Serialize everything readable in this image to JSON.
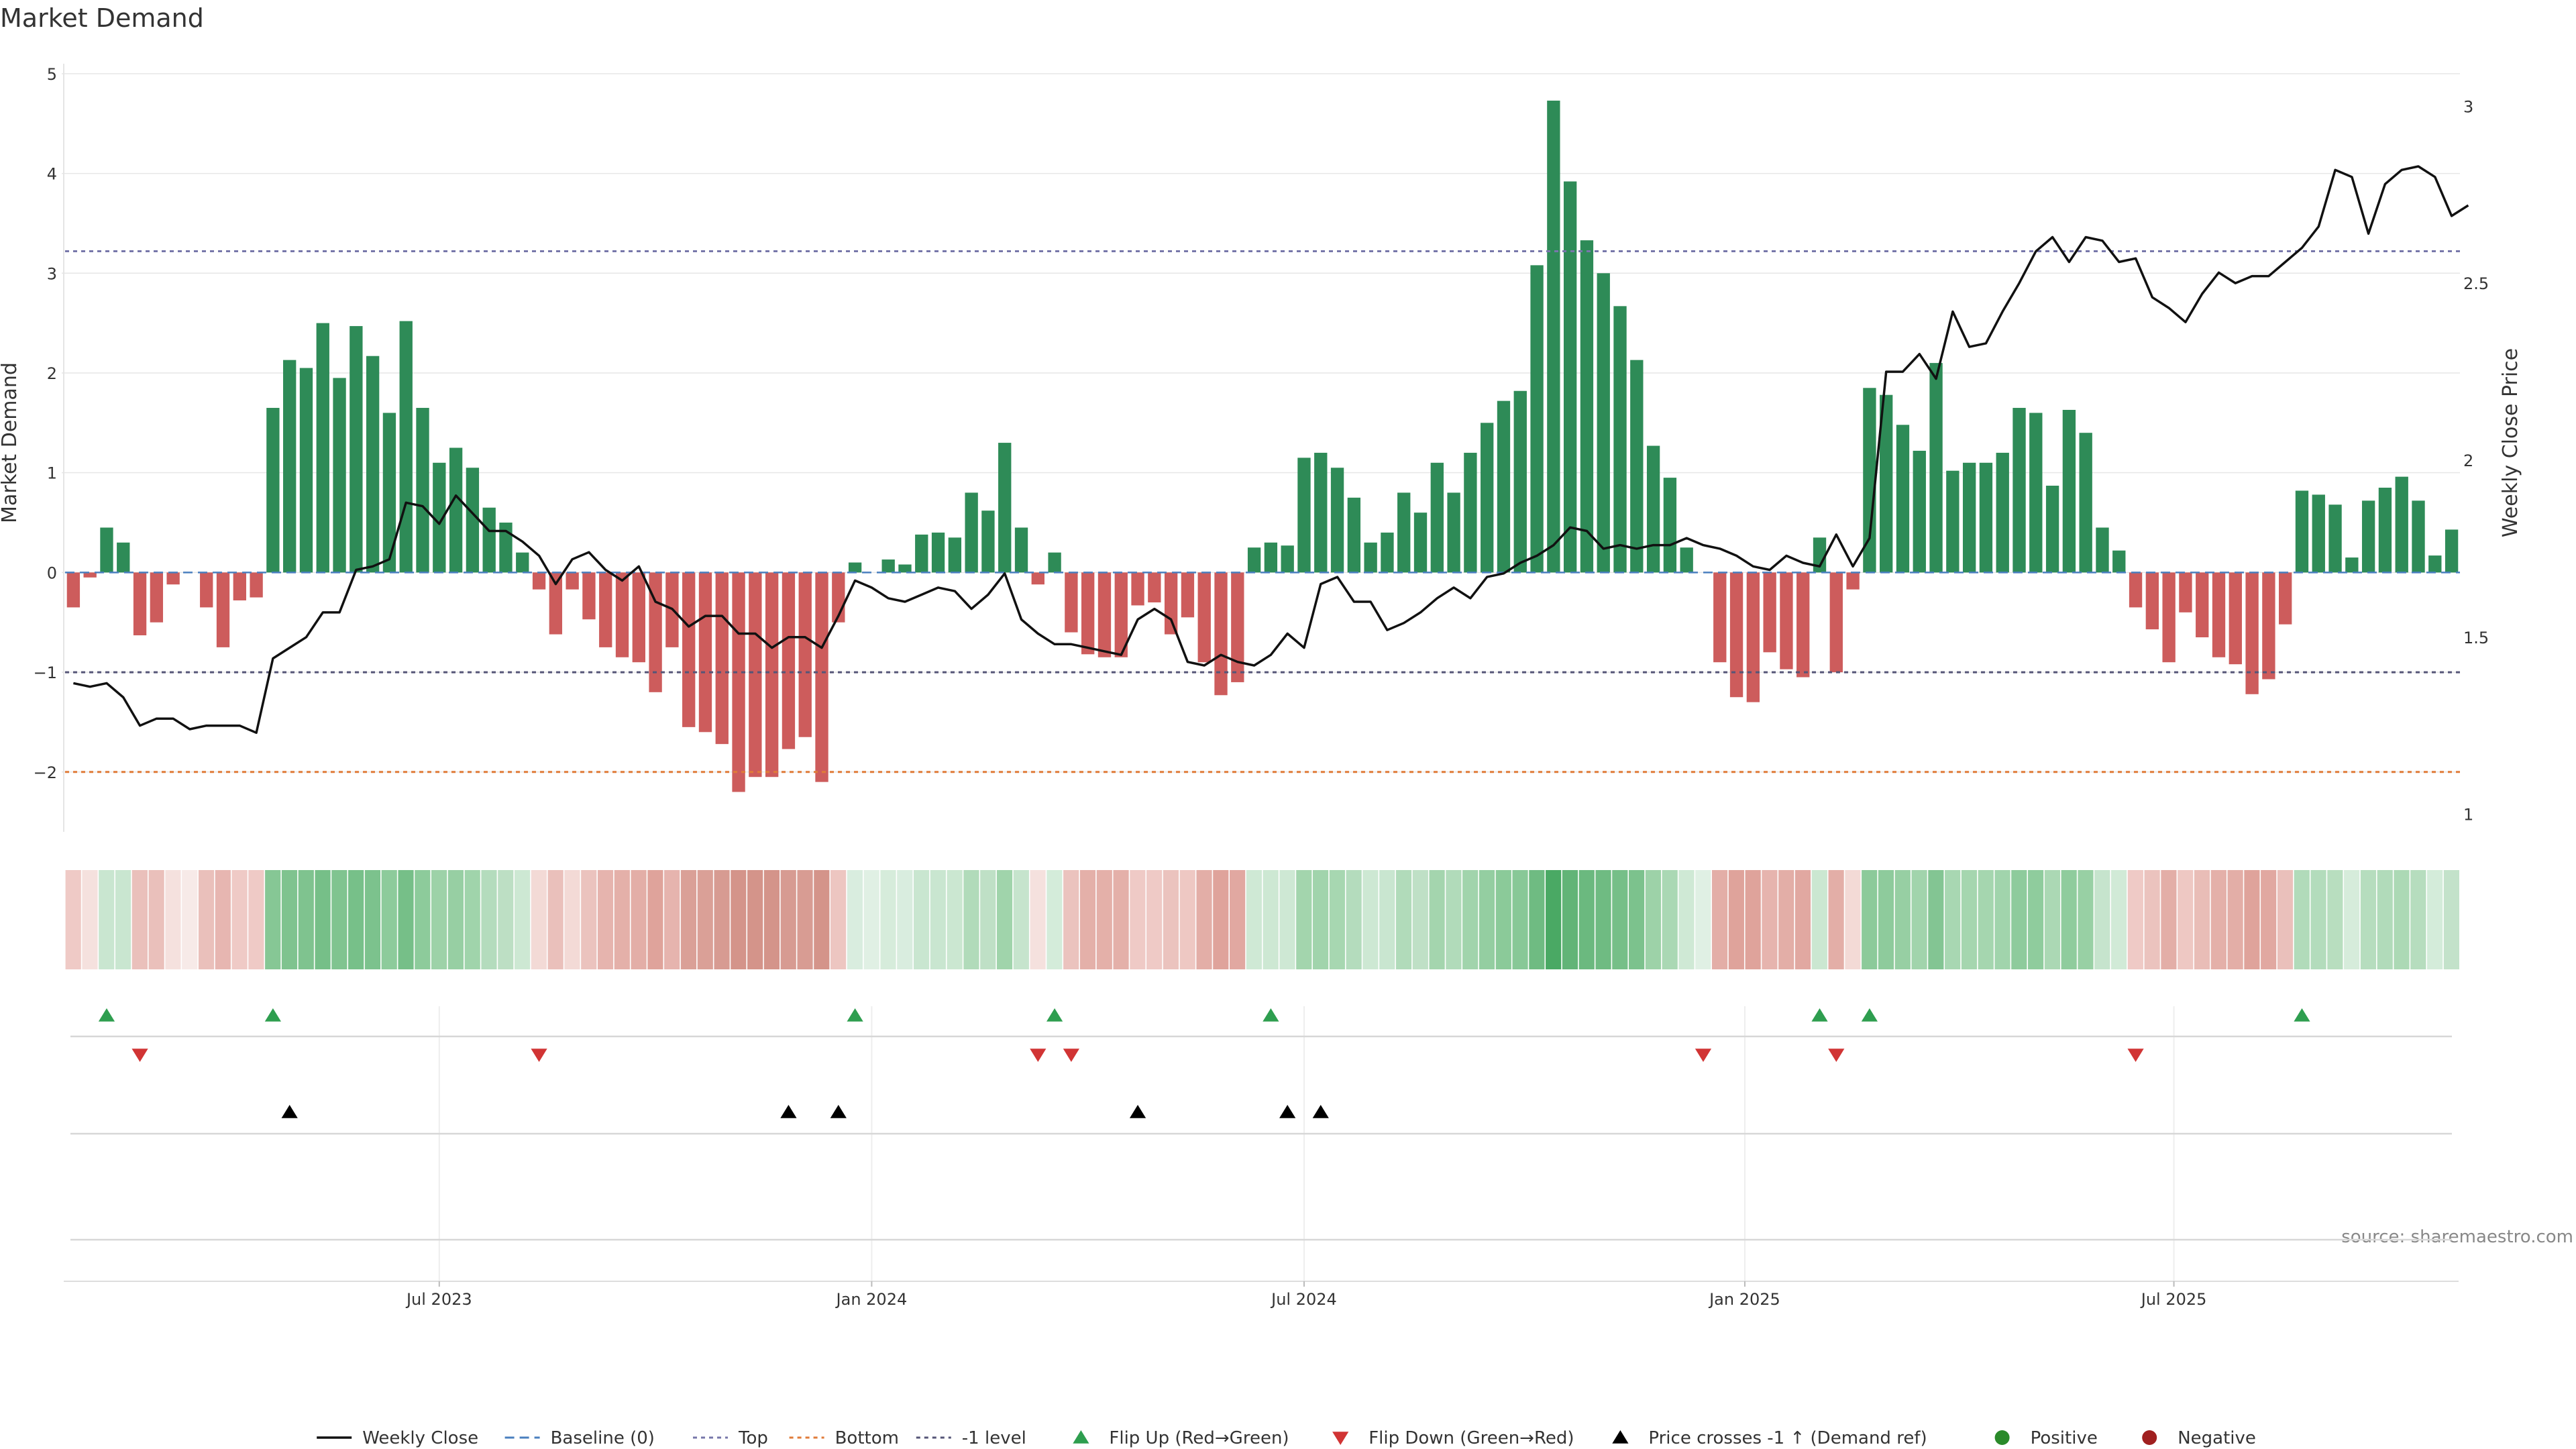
{
  "chart_data": {
    "type": "bar",
    "title": "Market Demand",
    "ylabel": "Market Demand",
    "y2label": "Weekly Close Price",
    "ylim": [
      -2.6,
      5.1
    ],
    "y2lim": [
      0.95,
      3.12
    ],
    "yticks": [
      -2,
      -1,
      0,
      1,
      2,
      3,
      4,
      5
    ],
    "y2ticks": [
      1,
      1.5,
      2,
      2.5,
      3
    ],
    "x_tick_labels": [
      "Jul 2023",
      "Jan 2024",
      "Jul 2024",
      "Jan 2025",
      "Jul 2025"
    ],
    "x_tick_positions_week": [
      22,
      48,
      74,
      100.5,
      126.3
    ],
    "reference_lines": [
      {
        "name": "Baseline (0)",
        "value": 0,
        "color": "#4a7fbf"
      },
      {
        "name": "Top",
        "value": 3.22,
        "color": "#7777aa"
      },
      {
        "name": "Bottom",
        "value": -2.0,
        "color": "#e07b39"
      },
      {
        "name": "-1 level",
        "value": -1.0,
        "color": "#555577"
      }
    ],
    "series": [
      {
        "name": "Market Demand",
        "type": "bar",
        "values": [
          -0.35,
          -0.05,
          0.45,
          0.3,
          -0.63,
          -0.5,
          -0.12,
          0,
          -0.35,
          -0.75,
          -0.28,
          -0.25,
          1.65,
          2.13,
          2.05,
          2.5,
          1.95,
          2.47,
          2.17,
          1.6,
          2.52,
          1.65,
          1.1,
          1.25,
          1.05,
          0.65,
          0.5,
          0.2,
          -0.17,
          -0.62,
          -0.17,
          -0.47,
          -0.75,
          -0.85,
          -0.9,
          -1.2,
          -0.75,
          -1.55,
          -1.6,
          -1.72,
          -2.2,
          -2.05,
          -2.05,
          -1.77,
          -1.65,
          -2.1,
          -0.5,
          0.1,
          0,
          0.13,
          0.08,
          0.38,
          0.4,
          0.35,
          0.8,
          0.62,
          1.3,
          0.45,
          -0.12,
          0.2,
          -0.6,
          -0.82,
          -0.85,
          -0.85,
          -0.33,
          -0.3,
          -0.62,
          -0.45,
          -0.9,
          -1.23,
          -1.1,
          0.25,
          0.3,
          0.27,
          1.15,
          1.2,
          1.05,
          0.75,
          0.3,
          0.4,
          0.8,
          0.6,
          1.1,
          0.8,
          1.2,
          1.5,
          1.72,
          1.82,
          3.08,
          4.73,
          3.92,
          3.33,
          3.0,
          2.67,
          2.13,
          1.27,
          0.95,
          0.25,
          0,
          -0.9,
          -1.25,
          -1.3,
          -0.8,
          -0.97,
          -1.05,
          0.35,
          -1.0,
          -0.17,
          1.85,
          1.78,
          1.48,
          1.22,
          2.1,
          1.02,
          1.1,
          1.1,
          1.2,
          1.65,
          1.6,
          0.87,
          1.63,
          1.4,
          0.45,
          0.22,
          -0.35,
          -0.57,
          -0.9,
          -0.4,
          -0.65,
          -0.85,
          -0.92,
          -1.22,
          -1.07,
          -0.52,
          0.82,
          0.78,
          0.68,
          0.15,
          0.72,
          0.85,
          0.96,
          0.72,
          0.17,
          0.43
        ]
      },
      {
        "name": "Weekly Close",
        "type": "line",
        "axis": "right",
        "values": [
          1.37,
          1.36,
          1.37,
          1.33,
          1.25,
          1.27,
          1.27,
          1.24,
          1.25,
          1.25,
          1.25,
          1.23,
          1.44,
          1.47,
          1.5,
          1.57,
          1.57,
          1.69,
          1.7,
          1.72,
          1.88,
          1.87,
          1.82,
          1.9,
          1.85,
          1.8,
          1.8,
          1.77,
          1.73,
          1.65,
          1.72,
          1.74,
          1.69,
          1.66,
          1.7,
          1.6,
          1.58,
          1.53,
          1.56,
          1.56,
          1.51,
          1.51,
          1.47,
          1.5,
          1.5,
          1.47,
          1.56,
          1.66,
          1.64,
          1.61,
          1.6,
          1.62,
          1.64,
          1.63,
          1.58,
          1.62,
          1.68,
          1.55,
          1.51,
          1.48,
          1.48,
          1.47,
          1.46,
          1.45,
          1.55,
          1.58,
          1.55,
          1.43,
          1.42,
          1.45,
          1.43,
          1.42,
          1.45,
          1.51,
          1.47,
          1.65,
          1.67,
          1.6,
          1.6,
          1.52,
          1.54,
          1.57,
          1.61,
          1.64,
          1.61,
          1.67,
          1.68,
          1.71,
          1.73,
          1.76,
          1.81,
          1.8,
          1.75,
          1.76,
          1.75,
          1.76,
          1.76,
          1.78,
          1.76,
          1.75,
          1.73,
          1.7,
          1.69,
          1.73,
          1.71,
          1.7,
          1.79,
          1.7,
          1.78,
          2.25,
          2.25,
          2.3,
          2.23,
          2.42,
          2.32,
          2.33,
          2.42,
          2.5,
          2.59,
          2.63,
          2.56,
          2.63,
          2.62,
          2.56,
          2.57,
          2.46,
          2.43,
          2.39,
          2.47,
          2.53,
          2.5,
          2.52,
          2.52,
          2.56,
          2.6,
          2.66,
          2.82,
          2.8,
          2.64,
          2.78,
          2.82,
          2.83,
          2.8,
          2.69,
          2.72
        ]
      }
    ],
    "strength_strip_colors": [
      "#efcac6",
      "#f5e1de",
      "#c9e6d0",
      "#c9e6d0",
      "#eac0bb",
      "#eac0bb",
      "#f5e1de",
      "#f7eae8",
      "#eac0bb",
      "#e7b6b1",
      "#efcac6",
      "#efcac6",
      "#86c795",
      "#7fc38f",
      "#7fc38f",
      "#76bf88",
      "#80c490",
      "#77c089",
      "#7cc28d",
      "#8dcb9b",
      "#76bf88",
      "#8dcb9b",
      "#9dd2a8",
      "#97cfa3",
      "#a0d4ab",
      "#b4dcbd",
      "#bddfc4",
      "#cde8d3",
      "#f3dad6",
      "#eac0bb",
      "#f3dad6",
      "#ebc3be",
      "#e6b4ae",
      "#e4b0a9",
      "#e3aea7",
      "#dfa39b",
      "#e6b4ae",
      "#daa097",
      "#daa097",
      "#d79b92",
      "#d4948a",
      "#d4948a",
      "#d4948a",
      "#d79b92",
      "#d89c93",
      "#d4948a",
      "#edc6c1",
      "#d9eddf",
      "#e0f0e4",
      "#d6ecdb",
      "#d9eddf",
      "#c9e6d0",
      "#c9e6d0",
      "#cbe7d1",
      "#b1dbba",
      "#bfe0c6",
      "#a0d4ab",
      "#c6e4cd",
      "#f5e1de",
      "#d4ecda",
      "#ebc3be",
      "#e4b0a9",
      "#e4b0a9",
      "#e4b0a9",
      "#efcac6",
      "#efcac6",
      "#ebc3be",
      "#eec8c3",
      "#e3aea7",
      "#dfa39b",
      "#e1a8a1",
      "#cfe9d5",
      "#cde8d3",
      "#cee8d4",
      "#a3d5ad",
      "#a1d4ac",
      "#a7d7b1",
      "#b4dcbd",
      "#cde8d3",
      "#c9e6d0",
      "#b1dbba",
      "#bfe0c6",
      "#a4d5ae",
      "#b1dbba",
      "#a1d4ac",
      "#94cea1",
      "#8bca99",
      "#88c897",
      "#6fbb82",
      "#4aa964",
      "#62b477",
      "#6bb97f",
      "#6fbb82",
      "#76bf88",
      "#7cc28d",
      "#9dd2a8",
      "#aad8b4",
      "#cfe9d5",
      "#e0f0e4",
      "#e3aea7",
      "#dfa39b",
      "#dfa39b",
      "#e6b4ae",
      "#e3aea7",
      "#e1a8a1",
      "#cbe7d1",
      "#e3aea7",
      "#f3dad6",
      "#8cca9a",
      "#8ecb9c",
      "#97cfa3",
      "#a1d4ac",
      "#83c593",
      "#a8d7b2",
      "#a5d6af",
      "#a5d6af",
      "#a1d4ac",
      "#8ecb9c",
      "#8fcc9d",
      "#abd8b4",
      "#8fcc9d",
      "#98d0a4",
      "#c6e4cd",
      "#d1eaD7",
      "#efcac6",
      "#ebc3be",
      "#e3aea7",
      "#eec8c3",
      "#e9bdb7",
      "#e4b0a9",
      "#e3aea7",
      "#dfa39b",
      "#e1a8a1",
      "#eac0bb",
      "#b1dbba",
      "#b3dcbc",
      "#b8debf",
      "#d6ecdb",
      "#b6ddbe",
      "#b1dbba",
      "#acd9b5",
      "#b6ddbe",
      "#d4ecda",
      "#c3e2ca"
    ],
    "events": {
      "flip_up": {
        "label": "Flip Up (Red→Green)",
        "weeks": [
          2,
          12,
          47,
          59,
          72,
          105,
          108,
          134
        ]
      },
      "flip_down": {
        "label": "Flip Down (Green→Red)",
        "weeks": [
          4,
          28,
          58,
          60,
          98,
          106,
          124
        ]
      },
      "price_cross": {
        "label": "Price crosses -1 ↑ (Demand ref)",
        "weeks": [
          13,
          43,
          46,
          64,
          73,
          75
        ]
      }
    },
    "legend": [
      {
        "label": "Weekly Close",
        "kind": "line",
        "color": "#111111"
      },
      {
        "label": "Baseline (0)",
        "kind": "dash",
        "color": "#4a7fbf"
      },
      {
        "label": "Top",
        "kind": "dot",
        "color": "#7777aa"
      },
      {
        "label": "Bottom",
        "kind": "dot",
        "color": "#e07b39"
      },
      {
        "label": "-1 level",
        "kind": "dot",
        "color": "#555577"
      },
      {
        "label": "Flip Up (Red→Green)",
        "kind": "tri-up",
        "color": "#2e9e4f"
      },
      {
        "label": "Flip Down (Green→Red)",
        "kind": "tri-down",
        "color": "#d13434"
      },
      {
        "label": "Price crosses -1 ↑ (Demand ref)",
        "kind": "tri-up",
        "color": "#000000"
      },
      {
        "label": "Positive",
        "kind": "circle",
        "color": "#2a8a2a"
      },
      {
        "label": "Negative",
        "kind": "circle",
        "color": "#a02020"
      }
    ],
    "source": "source: sharemaestro.com",
    "colors": {
      "positive_bar": "#2e8b57",
      "negative_bar": "#cd5c5c",
      "line": "#111111",
      "grid": "#e6e6e6"
    }
  }
}
